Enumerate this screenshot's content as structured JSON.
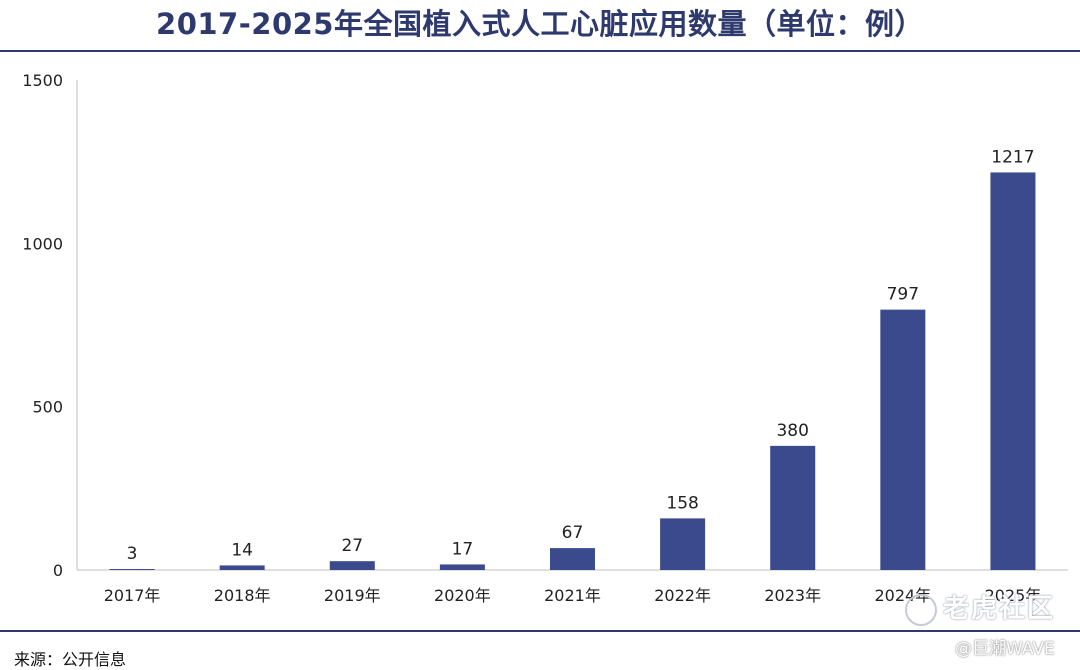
{
  "title": "2017-2025年全国植入式人工心脏应用数量（单位：例）",
  "source": "来源：公开信息",
  "watermark": {
    "primary": "老虎社区",
    "secondary": "@巨潮WAVE",
    "icon": "tiger-logo-icon"
  },
  "colors": {
    "bar": "#3a4a8c",
    "title": "#2e3a6e",
    "rule": "#2e3a6e"
  },
  "chart_data": {
    "type": "bar",
    "title": "2017-2025年全国植入式人工心脏应用数量（单位：例）",
    "categories": [
      "2017年",
      "2018年",
      "2019年",
      "2020年",
      "2021年",
      "2022年",
      "2023年",
      "2024年",
      "2025年"
    ],
    "values": [
      3,
      14,
      27,
      17,
      67,
      158,
      380,
      797,
      1217
    ],
    "ylim": [
      0,
      1500
    ],
    "yticks": [
      0,
      500,
      1000,
      1500
    ],
    "xlabel": "",
    "ylabel": "",
    "grid": false,
    "data_labels": true
  }
}
